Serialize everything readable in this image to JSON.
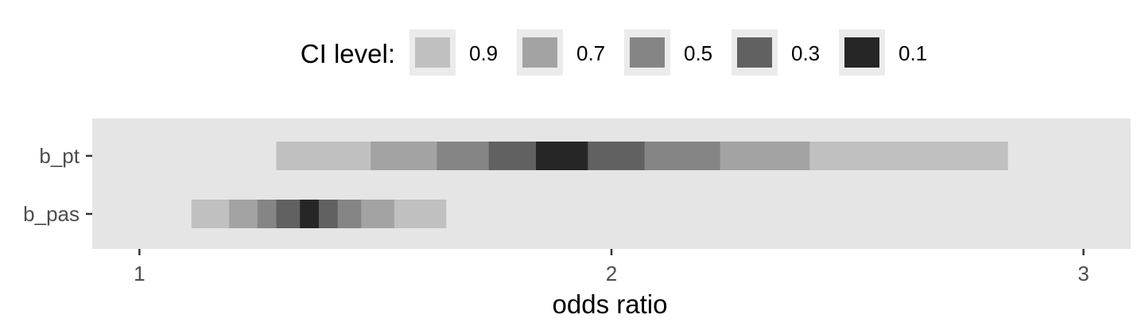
{
  "chart_data": {
    "type": "interval",
    "xlabel": "odds ratio",
    "ylabel": "",
    "xlim": [
      0.9,
      3.1
    ],
    "x_ticks": [
      1,
      2,
      3
    ],
    "x_tick_labels": [
      "1",
      "2",
      "3"
    ],
    "categories": [
      "b_pt",
      "b_pas"
    ],
    "legend": {
      "title": "CI level:",
      "position": "top",
      "entries": [
        {
          "level": "0.9",
          "color": "#c0c0c0"
        },
        {
          "level": "0.7",
          "color": "#a3a3a3"
        },
        {
          "level": "0.5",
          "color": "#858585"
        },
        {
          "level": "0.3",
          "color": "#616161"
        },
        {
          "level": "0.1",
          "color": "#262626"
        }
      ]
    },
    "series": [
      {
        "category": "b_pt",
        "intervals": [
          {
            "level": "0.9",
            "low": 1.29,
            "high": 2.84
          },
          {
            "level": "0.7",
            "low": 1.49,
            "high": 2.42
          },
          {
            "level": "0.5",
            "low": 1.63,
            "high": 2.23
          },
          {
            "level": "0.3",
            "low": 1.74,
            "high": 2.07
          },
          {
            "level": "0.1",
            "low": 1.84,
            "high": 1.95
          }
        ]
      },
      {
        "category": "b_pas",
        "intervals": [
          {
            "level": "0.9",
            "low": 1.11,
            "high": 1.65
          },
          {
            "level": "0.7",
            "low": 1.19,
            "high": 1.54
          },
          {
            "level": "0.5",
            "low": 1.25,
            "high": 1.47
          },
          {
            "level": "0.3",
            "low": 1.29,
            "high": 1.42
          },
          {
            "level": "0.1",
            "low": 1.34,
            "high": 1.38
          }
        ]
      }
    ],
    "panel_background": "#e5e5e5",
    "grid": false
  }
}
